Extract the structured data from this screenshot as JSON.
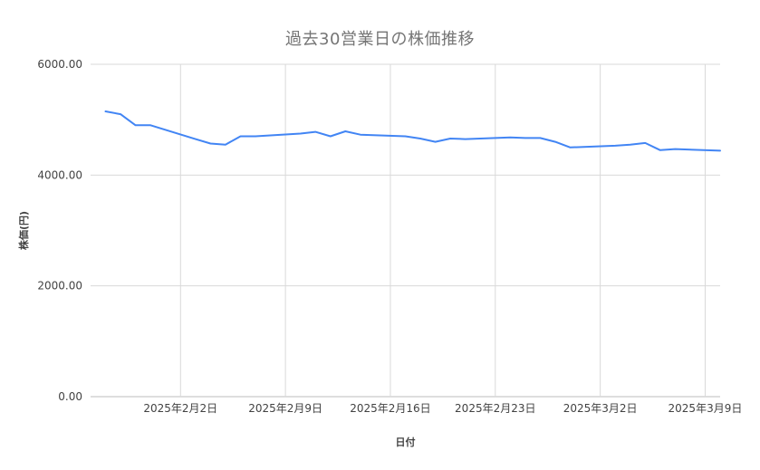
{
  "page": {
    "background_color": "#ffffff"
  },
  "chart_data": {
    "type": "line",
    "title": "過去30営業日の株価推移",
    "xlabel": "日付",
    "ylabel": "株価(円)",
    "legend": "none",
    "grid": true,
    "line_color": "#4285f4",
    "grid_color": "#d9d9d9",
    "baseline_color": "#bdbdbd",
    "axis_text_color": "#424242",
    "title_color": "#757575",
    "ylim": [
      0,
      6000
    ],
    "x_domain": [
      "2025-01-27",
      "2025-03-10"
    ],
    "x_dates": [
      "2025-01-28",
      "2025-01-29",
      "2025-01-30",
      "2025-01-31",
      "2025-02-03",
      "2025-02-04",
      "2025-02-05",
      "2025-02-06",
      "2025-02-07",
      "2025-02-10",
      "2025-02-11",
      "2025-02-12",
      "2025-02-13",
      "2025-02-14",
      "2025-02-17",
      "2025-02-18",
      "2025-02-19",
      "2025-02-20",
      "2025-02-21",
      "2025-02-24",
      "2025-02-25",
      "2025-02-26",
      "2025-02-27",
      "2025-02-28",
      "2025-03-03",
      "2025-03-04",
      "2025-03-05",
      "2025-03-06",
      "2025-03-07",
      "2025-03-10"
    ],
    "values": [
      5150,
      5100,
      4900,
      4900,
      4650,
      4570,
      4550,
      4700,
      4700,
      4750,
      4780,
      4700,
      4790,
      4730,
      4700,
      4660,
      4600,
      4660,
      4650,
      4680,
      4670,
      4670,
      4600,
      4500,
      4530,
      4550,
      4580,
      4450,
      4470,
      4440
    ],
    "y_ticks": [
      {
        "value": 0,
        "label": "0.00"
      },
      {
        "value": 2000,
        "label": "2000.00"
      },
      {
        "value": 4000,
        "label": "4000.00"
      },
      {
        "value": 6000,
        "label": "6000.00"
      }
    ],
    "x_ticks": [
      {
        "date": "2025-02-02",
        "label": "2025年2月2日"
      },
      {
        "date": "2025-02-09",
        "label": "2025年2月9日"
      },
      {
        "date": "2025-02-16",
        "label": "2025年2月16日"
      },
      {
        "date": "2025-02-23",
        "label": "2025年2月23日"
      },
      {
        "date": "2025-03-02",
        "label": "2025年3月2日"
      },
      {
        "date": "2025-03-09",
        "label": "2025年3月9日"
      }
    ]
  }
}
